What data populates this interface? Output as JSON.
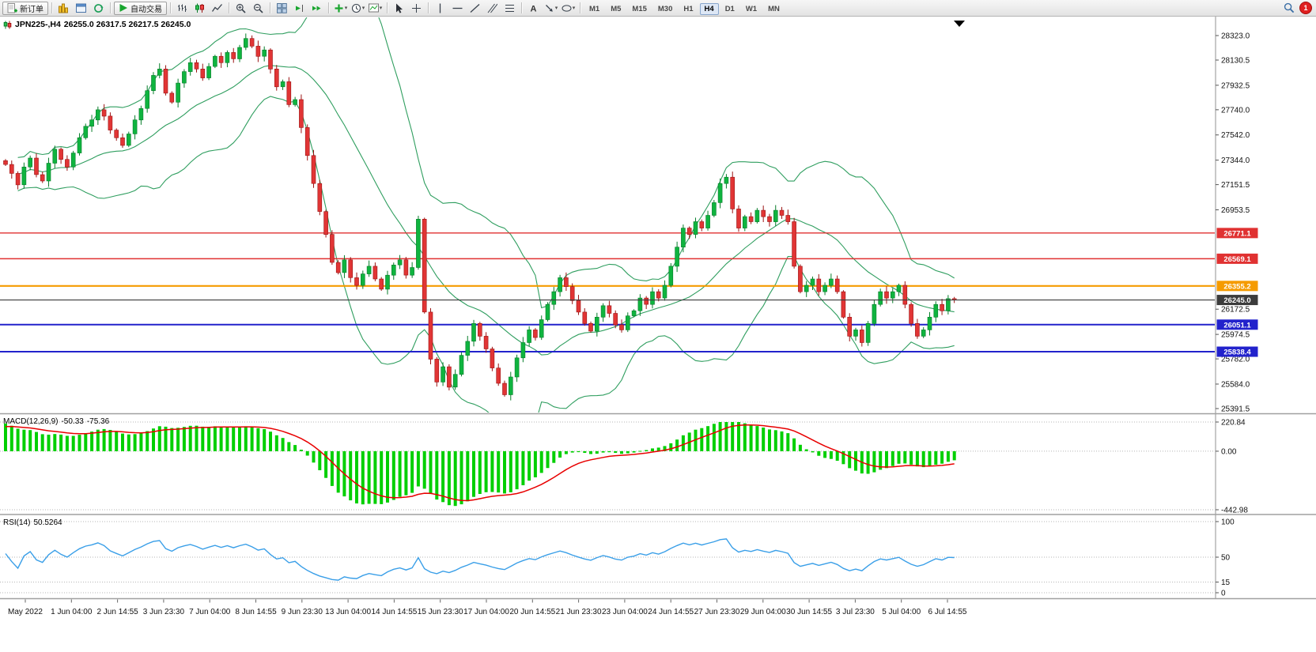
{
  "toolbar": {
    "new_order_label": "新订单",
    "autotrade_label": "自动交易",
    "timeframes": [
      "M1",
      "M5",
      "M15",
      "M30",
      "H1",
      "H4",
      "D1",
      "W1",
      "MN"
    ],
    "active_timeframe": "H4",
    "notification_count": "1"
  },
  "chart_data": [
    {
      "type": "candlestick",
      "symbol": "JPN225-",
      "timeframe": "H4",
      "title_symbol": "JPN225-,H4",
      "title_ohlc": "26255.0 26317.5 26217.5 26245.0",
      "ohlc": {
        "open": 26255.0,
        "high": 26317.5,
        "low": 26217.5,
        "close": 26245.0
      },
      "price_range": [
        25391.5,
        28323.0
      ],
      "price_axis_labels": [
        "28323.0",
        "28130.5",
        "27932.5",
        "27740.0",
        "27542.0",
        "27344.0",
        "27151.5",
        "26953.5",
        "26172.5",
        "25974.5",
        "25782.0",
        "25584.0",
        "25391.5"
      ],
      "levels": [
        {
          "price": 26771.1,
          "label": "26771.1",
          "color": "#e03131",
          "width": 1.4,
          "current": false
        },
        {
          "price": 26569.1,
          "label": "26569.1",
          "color": "#e03131",
          "width": 1.4,
          "current": false
        },
        {
          "price": 26355.2,
          "label": "26355.2",
          "color": "#f59b00",
          "width": 2.2,
          "current": false
        },
        {
          "price": 26245.0,
          "label": "26245.0",
          "color": "#3c3c3c",
          "width": 1.2,
          "current": true
        },
        {
          "price": 26051.1,
          "label": "26051.1",
          "color": "#2222cc",
          "width": 2.0,
          "current": false
        },
        {
          "price": 25838.4,
          "label": "25838.4",
          "color": "#2222cc",
          "width": 2.0,
          "current": false
        }
      ],
      "bollinger": {
        "period": 20,
        "deviation": 2
      },
      "colors": {
        "up": "#0fb43f",
        "up_border": "#067d29",
        "down": "#e13535",
        "down_border": "#9b1313",
        "bollinger": "#2f9e5f",
        "background": "#ffffff"
      },
      "x_labels": [
        "May 2022",
        "1 Jun 04:00",
        "2 Jun 14:55",
        "3 Jun 23:30",
        "7 Jun 04:00",
        "8 Jun 14:55",
        "9 Jun 23:30",
        "13 Jun 04:00",
        "14 Jun 14:55",
        "15 Jun 23:30",
        "17 Jun 04:00",
        "20 Jun 14:55",
        "21 Jun 23:30",
        "23 Jun 04:00",
        "24 Jun 14:55",
        "27 Jun 23:30",
        "29 Jun 04:00",
        "30 Jun 14:55",
        "3 Jul 23:30",
        "5 Jul 04:00",
        "6 Jul 14:55"
      ],
      "closes": [
        27310,
        27240,
        27150,
        27290,
        27360,
        27230,
        27180,
        27320,
        27430,
        27350,
        27290,
        27400,
        27520,
        27610,
        27660,
        27740,
        27690,
        27580,
        27520,
        27460,
        27550,
        27660,
        27750,
        27890,
        28010,
        28060,
        27870,
        27800,
        27950,
        28040,
        28110,
        28060,
        27990,
        28080,
        28160,
        28110,
        28190,
        28140,
        28230,
        28300,
        28240,
        28160,
        28210,
        28060,
        27920,
        27960,
        27780,
        27820,
        27600,
        27380,
        27160,
        26940,
        26760,
        26540,
        26460,
        26560,
        26420,
        26360,
        26450,
        26510,
        26410,
        26330,
        26440,
        26520,
        26560,
        26440,
        26500,
        26880,
        26150,
        25780,
        25600,
        25720,
        25560,
        25660,
        25810,
        25920,
        26060,
        25960,
        25860,
        25710,
        25590,
        25500,
        25640,
        25790,
        25910,
        26010,
        25950,
        26090,
        26210,
        26310,
        26420,
        26350,
        26240,
        26150,
        26060,
        26000,
        26110,
        26200,
        26140,
        26050,
        26010,
        26120,
        26160,
        26260,
        26210,
        26310,
        26260,
        26360,
        26510,
        26660,
        26810,
        26760,
        26860,
        26810,
        26910,
        27010,
        27160,
        27210,
        26960,
        26810,
        26900,
        26860,
        26950,
        26900,
        26860,
        26950,
        26910,
        26860,
        26510,
        26310,
        26360,
        26410,
        26310,
        26360,
        26410,
        26310,
        26110,
        25960,
        26010,
        25910,
        26060,
        26210,
        26310,
        26260,
        26310,
        26360,
        26210,
        26060,
        25960,
        26010,
        26110,
        26210,
        26160,
        26255,
        26245
      ]
    },
    {
      "type": "macd",
      "label": "MACD(12,26,9)",
      "value_main": "-50.33",
      "value_signal": "-75.36",
      "params": [
        12,
        26,
        9
      ],
      "axis_labels": [
        "220.84",
        "0.00",
        "-442.98"
      ],
      "histogram_color": "#00cf00",
      "signal_color": "#e80000"
    },
    {
      "type": "rsi",
      "label": "RSI(14)",
      "value_display": "50.5264",
      "period": 14,
      "axis_labels": [
        "100",
        "50",
        "15",
        "0"
      ],
      "levels": [
        100,
        50,
        15,
        0
      ],
      "line_color": "#3a9fe8"
    }
  ]
}
